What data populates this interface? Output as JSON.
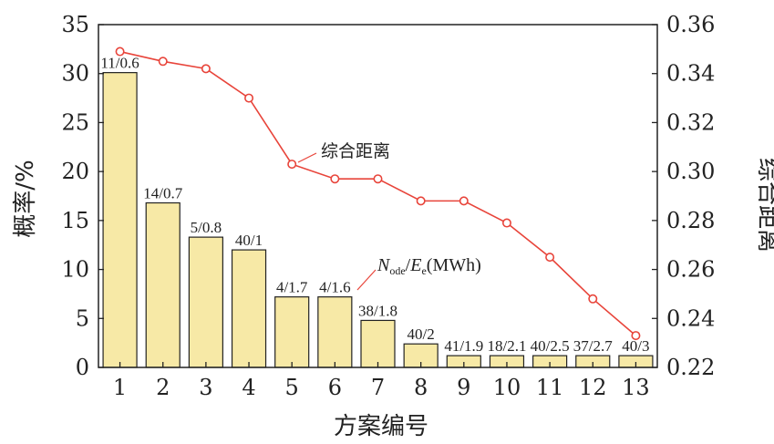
{
  "chart_data": {
    "type": "bar",
    "categories": [
      "1",
      "2",
      "3",
      "4",
      "5",
      "6",
      "7",
      "8",
      "9",
      "10",
      "11",
      "12",
      "13"
    ],
    "series": [
      {
        "type": "bar",
        "axis": "left",
        "values": [
          30.1,
          16.8,
          13.3,
          12.0,
          7.2,
          7.2,
          4.8,
          2.4,
          1.2,
          1.2,
          1.2,
          1.2,
          1.2
        ],
        "labels": [
          "11/0.6",
          "14/0.7",
          "5/0.8",
          "40/1",
          "4/1.7",
          "4/1.6",
          "38/1.8",
          "40/2",
          "41/1.9",
          "18/2.1",
          "40/2.5",
          "37/2.7",
          "40/3"
        ],
        "color": "#f7e9a6",
        "stroke": "#222222"
      },
      {
        "type": "line",
        "axis": "right",
        "name": "综合距离",
        "values": [
          0.349,
          0.345,
          0.342,
          0.33,
          0.303,
          0.297,
          0.297,
          0.288,
          0.288,
          0.279,
          0.265,
          0.248,
          0.233
        ],
        "color": "#e8443a"
      }
    ],
    "xlabel": "方案编号",
    "ylabel_left": "概率/%",
    "ylabel_right": "综合距离",
    "ylim_left": [
      0,
      35
    ],
    "ylim_right": [
      0.22,
      0.36
    ],
    "yticks_left": [
      "0",
      "5",
      "10",
      "15",
      "20",
      "25",
      "30",
      "35"
    ],
    "yticks_right": [
      "0.22",
      "0.24",
      "0.26",
      "0.28",
      "0.30",
      "0.32",
      "0.34",
      "0.36"
    ],
    "annotations": {
      "line_label": "综合距离",
      "bar_label_note": {
        "n": "N",
        "n_sub": "ode",
        "sep": "/",
        "e": "E",
        "e_sub": "e",
        "unit": "(MWh)"
      }
    },
    "grid": false
  }
}
